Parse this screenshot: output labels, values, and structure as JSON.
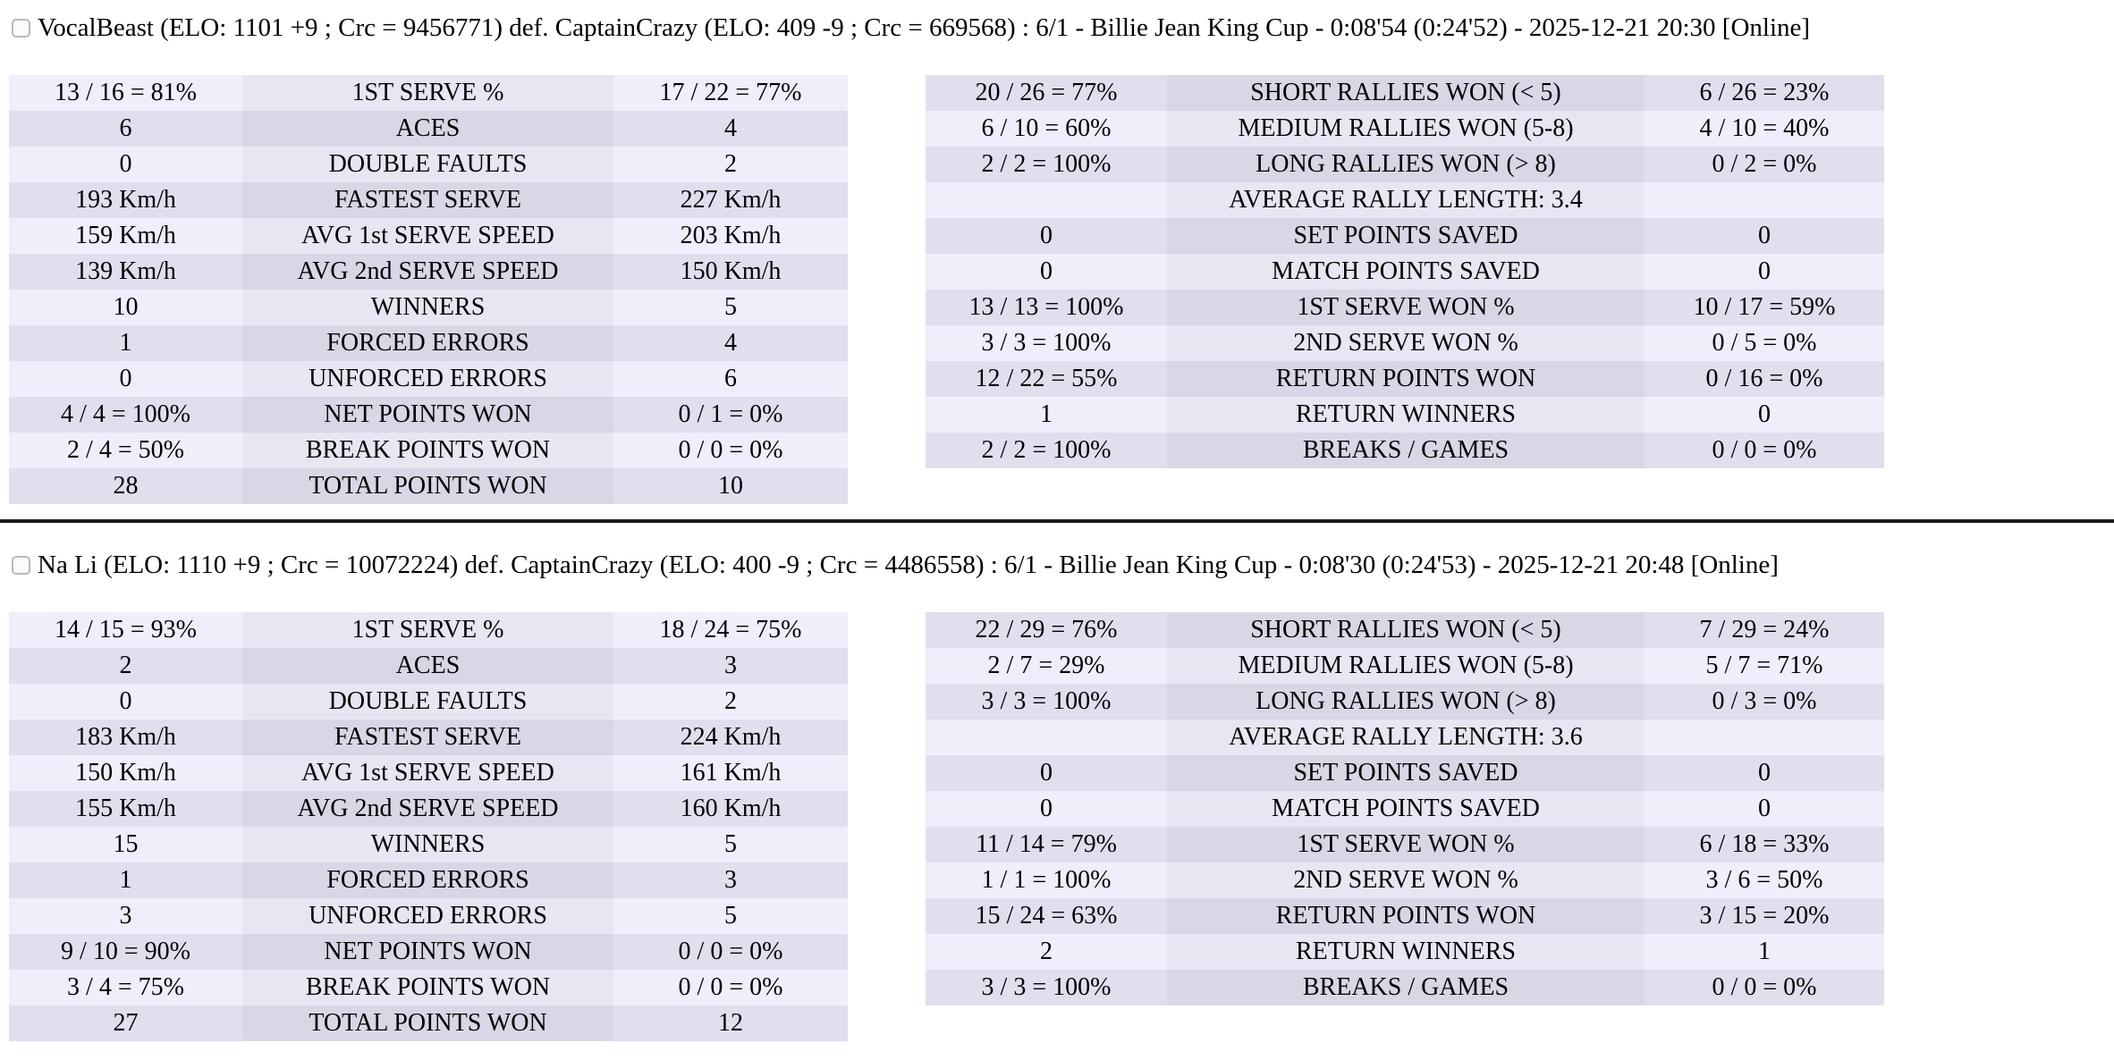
{
  "colors": {
    "row_light_side": "#efeefa",
    "row_light_mid": "#e7e6f2",
    "row_dark_side": "#e0dfee",
    "row_dark_mid": "#d8d7e5",
    "divider": "#1d1d1d",
    "checkbox_border": "#b9b9b9",
    "checkbox_fill": "#fbfbfb",
    "text": "#000000"
  },
  "matches": [
    {
      "header": "VocalBeast (ELO: 1101 +9 ; Crc = 9456771) def. CaptainCrazy (ELO: 409 -9 ; Crc = 669568) : 6/1 - Billie Jean King Cup - 0:08'54 (0:24'52) - 2025-12-21 20:30 [Online]",
      "serve_table": {
        "rows": [
          [
            "13 / 16 = 81%",
            "1ST SERVE %",
            "17 / 22 = 77%"
          ],
          [
            "6",
            "ACES",
            "4"
          ],
          [
            "0",
            "DOUBLE FAULTS",
            "2"
          ],
          [
            "193 Km/h",
            "FASTEST SERVE",
            "227 Km/h"
          ],
          [
            "159 Km/h",
            "AVG 1st SERVE SPEED",
            "203 Km/h"
          ],
          [
            "139 Km/h",
            "AVG 2nd SERVE SPEED",
            "150 Km/h"
          ],
          [
            "10",
            "WINNERS",
            "5"
          ],
          [
            "1",
            "FORCED ERRORS",
            "4"
          ],
          [
            "0",
            "UNFORCED ERRORS",
            "6"
          ],
          [
            "4 / 4 = 100%",
            "NET POINTS WON",
            "0 / 1 = 0%"
          ],
          [
            "2 / 4 = 50%",
            "BREAK POINTS WON",
            "0 / 0 = 0%"
          ],
          [
            "28",
            "TOTAL POINTS WON",
            "10"
          ]
        ]
      },
      "rally_table": {
        "rows": [
          [
            "20 / 26 = 77%",
            "SHORT RALLIES WON (< 5)",
            "6 / 26 = 23%"
          ],
          [
            "6 / 10 = 60%",
            "MEDIUM RALLIES WON (5-8)",
            "4 / 10 = 40%"
          ],
          [
            "2 / 2 = 100%",
            "LONG RALLIES WON (> 8)",
            "0 / 2 = 0%"
          ],
          [
            "",
            "AVERAGE RALLY LENGTH: 3.4",
            ""
          ],
          [
            "0",
            "SET POINTS SAVED",
            "0"
          ],
          [
            "0",
            "MATCH POINTS SAVED",
            "0"
          ],
          [
            "13 / 13 = 100%",
            "1ST SERVE WON %",
            "10 / 17 = 59%"
          ],
          [
            "3 / 3 = 100%",
            "2ND SERVE WON %",
            "0 / 5 = 0%"
          ],
          [
            "12 / 22 = 55%",
            "RETURN POINTS WON",
            "0 / 16 = 0%"
          ],
          [
            "1",
            "RETURN WINNERS",
            "0"
          ],
          [
            "2 / 2 = 100%",
            "BREAKS / GAMES",
            "0 / 0 = 0%"
          ]
        ]
      }
    },
    {
      "header": "Na Li (ELO: 1110 +9 ; Crc = 10072224) def. CaptainCrazy (ELO: 400 -9 ; Crc = 4486558) : 6/1 - Billie Jean King Cup - 0:08'30 (0:24'53) - 2025-12-21 20:48 [Online]",
      "serve_table": {
        "rows": [
          [
            "14 / 15 = 93%",
            "1ST SERVE %",
            "18 / 24 = 75%"
          ],
          [
            "2",
            "ACES",
            "3"
          ],
          [
            "0",
            "DOUBLE FAULTS",
            "2"
          ],
          [
            "183 Km/h",
            "FASTEST SERVE",
            "224 Km/h"
          ],
          [
            "150 Km/h",
            "AVG 1st SERVE SPEED",
            "161 Km/h"
          ],
          [
            "155 Km/h",
            "AVG 2nd SERVE SPEED",
            "160 Km/h"
          ],
          [
            "15",
            "WINNERS",
            "5"
          ],
          [
            "1",
            "FORCED ERRORS",
            "3"
          ],
          [
            "3",
            "UNFORCED ERRORS",
            "5"
          ],
          [
            "9 / 10 = 90%",
            "NET POINTS WON",
            "0 / 0 = 0%"
          ],
          [
            "3 / 4 = 75%",
            "BREAK POINTS WON",
            "0 / 0 = 0%"
          ],
          [
            "27",
            "TOTAL POINTS WON",
            "12"
          ]
        ]
      },
      "rally_table": {
        "rows": [
          [
            "22 / 29 = 76%",
            "SHORT RALLIES WON (< 5)",
            "7 / 29 = 24%"
          ],
          [
            "2 / 7 = 29%",
            "MEDIUM RALLIES WON (5-8)",
            "5 / 7 = 71%"
          ],
          [
            "3 / 3 = 100%",
            "LONG RALLIES WON (> 8)",
            "0 / 3 = 0%"
          ],
          [
            "",
            "AVERAGE RALLY LENGTH: 3.6",
            ""
          ],
          [
            "0",
            "SET POINTS SAVED",
            "0"
          ],
          [
            "0",
            "MATCH POINTS SAVED",
            "0"
          ],
          [
            "11 / 14 = 79%",
            "1ST SERVE WON %",
            "6 / 18 = 33%"
          ],
          [
            "1 / 1 = 100%",
            "2ND SERVE WON %",
            "3 / 6 = 50%"
          ],
          [
            "15 / 24 = 63%",
            "RETURN POINTS WON",
            "3 / 15 = 20%"
          ],
          [
            "2",
            "RETURN WINNERS",
            "1"
          ],
          [
            "3 / 3 = 100%",
            "BREAKS / GAMES",
            "0 / 0 = 0%"
          ]
        ]
      }
    }
  ]
}
